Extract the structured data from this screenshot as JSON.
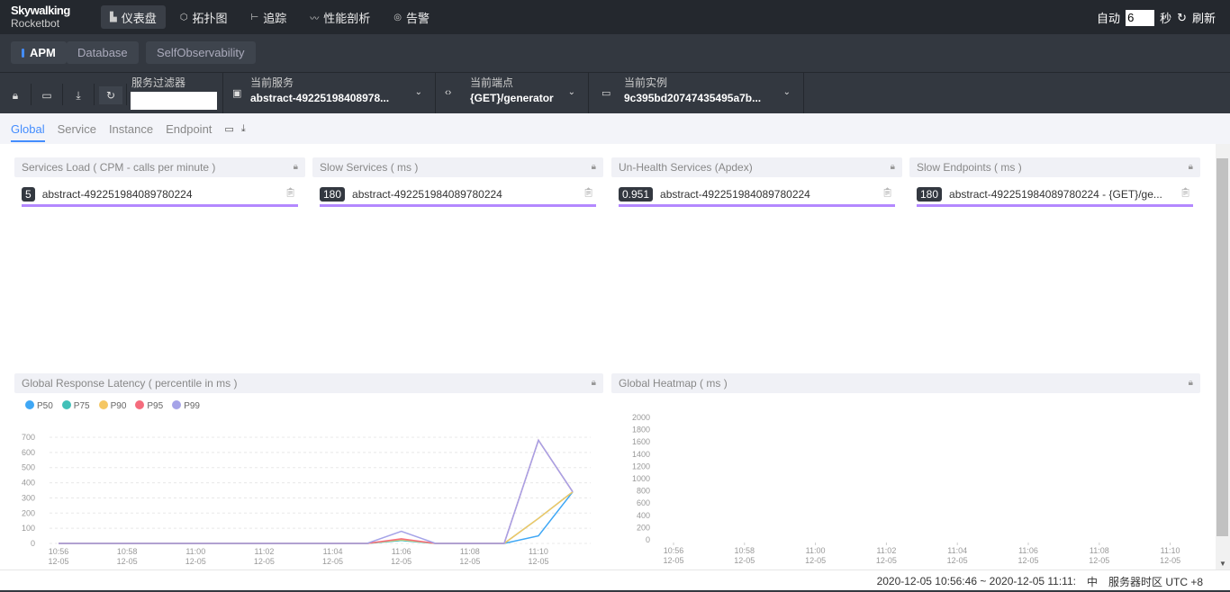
{
  "header": {
    "logo_top": "Skywalking",
    "logo_bottom": "Rocketbot",
    "nav": [
      {
        "label": "仪表盘",
        "icon": "dashboard-icon",
        "glyph": "▙"
      },
      {
        "label": "拓扑图",
        "icon": "topology-icon",
        "glyph": "⬡"
      },
      {
        "label": "追踪",
        "icon": "trace-icon",
        "glyph": "⊢"
      },
      {
        "label": "性能剖析",
        "icon": "profile-icon",
        "glyph": "〰"
      },
      {
        "label": "告警",
        "icon": "alarm-icon",
        "glyph": "◎"
      }
    ],
    "auto_label": "自动",
    "interval": "6",
    "seconds": "秒",
    "refresh": "刷新"
  },
  "groups": [
    "APM",
    "Database",
    "SelfObservability"
  ],
  "toolbar": {
    "filter_label": "服务过滤器",
    "filter_value": "",
    "service_label": "当前服务",
    "service_value": "abstract-49225198408978...",
    "endpoint_label": "当前端点",
    "endpoint_value": "{GET}/generator",
    "instance_label": "当前实例",
    "instance_value": "9c395bd20747435495a7b..."
  },
  "tabs": [
    "Global",
    "Service",
    "Instance",
    "Endpoint"
  ],
  "cards": [
    {
      "title": "Services Load ( CPM - calls per minute )",
      "value": "5",
      "name": "abstract-492251984089780224"
    },
    {
      "title": "Slow Services ( ms )",
      "value": "180",
      "name": "abstract-492251984089780224"
    },
    {
      "title": "Un-Health Services (Apdex)",
      "value": "0.951",
      "name": "abstract-492251984089780224"
    },
    {
      "title": "Slow Endpoints ( ms )",
      "value": "180",
      "name": "abstract-492251984089780224 - {GET}/ge..."
    }
  ],
  "colors": {
    "accent": "#448dfe",
    "underline": "#b388ff"
  },
  "chart_data": [
    {
      "type": "line",
      "title": "Global Response Latency ( percentile in ms )",
      "x": [
        "10:56",
        "10:57",
        "10:58",
        "10:59",
        "11:00",
        "11:01",
        "11:02",
        "11:03",
        "11:04",
        "11:05",
        "11:06",
        "11:07",
        "11:08",
        "11:09",
        "11:10",
        "11:11"
      ],
      "xtick_labels": [
        "10:56",
        "10:58",
        "11:00",
        "11:02",
        "11:04",
        "11:06",
        "11:08",
        "11:10"
      ],
      "xtick_date": "12-05",
      "ylim": [
        0,
        700
      ],
      "yticks": [
        0,
        100,
        200,
        300,
        400,
        500,
        600,
        700
      ],
      "grid": true,
      "legend": "top-left",
      "series": [
        {
          "name": "P50",
          "color": "#3fa7f5",
          "values": [
            0,
            0,
            0,
            0,
            0,
            0,
            0,
            0,
            0,
            0,
            20,
            0,
            0,
            0,
            50,
            340
          ]
        },
        {
          "name": "P75",
          "color": "#41c0b8",
          "values": [
            0,
            0,
            0,
            0,
            0,
            0,
            0,
            0,
            0,
            0,
            20,
            0,
            0,
            0,
            165,
            340
          ]
        },
        {
          "name": "P90",
          "color": "#f5c763",
          "values": [
            0,
            0,
            0,
            0,
            0,
            0,
            0,
            0,
            0,
            0,
            25,
            0,
            0,
            0,
            165,
            340
          ]
        },
        {
          "name": "P95",
          "color": "#f56c7d",
          "values": [
            0,
            0,
            0,
            0,
            0,
            0,
            0,
            0,
            0,
            0,
            30,
            0,
            0,
            0,
            680,
            340
          ]
        },
        {
          "name": "P99",
          "color": "#a5a3e8",
          "values": [
            0,
            0,
            0,
            0,
            0,
            0,
            0,
            0,
            0,
            0,
            80,
            0,
            0,
            0,
            680,
            340
          ]
        }
      ]
    },
    {
      "type": "heatmap",
      "title": "Global Heatmap ( ms )",
      "xtick_labels": [
        "10:56",
        "10:58",
        "11:00",
        "11:02",
        "11:04",
        "11:06",
        "11:08",
        "11:10"
      ],
      "xtick_date": "12-05",
      "ylim": [
        0,
        2000
      ],
      "yticks": [
        0,
        200,
        400,
        600,
        800,
        1000,
        1200,
        1400,
        1600,
        1800,
        2000
      ],
      "values": []
    }
  ],
  "footer": {
    "range": "2020-12-05 10:56:46 ~ 2020-12-05 11:11:",
    "lang": "中",
    "timezone": "服务器时区 UTC +8"
  }
}
